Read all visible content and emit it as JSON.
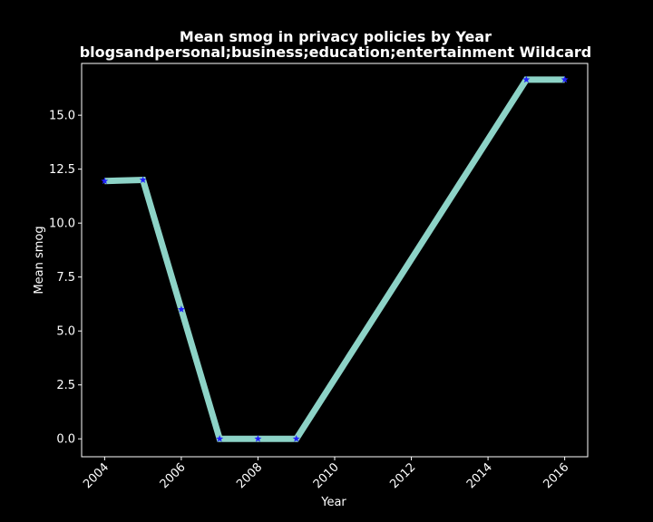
{
  "chart_data": {
    "type": "line",
    "title": "Mean smog in privacy policies by Year",
    "subtitle": "blogsandpersonal;business;education;entertainment Wildcard",
    "xlabel": "Year",
    "ylabel": "Mean smog",
    "x": [
      2004,
      2005,
      2006,
      2007,
      2008,
      2009,
      2015,
      2016
    ],
    "series": [
      {
        "values": [
          11.95,
          12.0,
          6.0,
          0.0,
          0.0,
          0.0,
          16.65,
          16.65
        ]
      }
    ],
    "xlim": [
      2003.4,
      2016.6
    ],
    "ylim": [
      -0.83,
      17.4
    ],
    "xticks": [
      "2004",
      "2006",
      "2008",
      "2010",
      "2012",
      "2014",
      "2016"
    ],
    "yticks": [
      "0.0",
      "2.5",
      "5.0",
      "7.5",
      "10.0",
      "12.5",
      "15.0"
    ],
    "grid": false,
    "legend": "none",
    "colors": {
      "background": "#000000",
      "line": "#8dd3c7",
      "marker": "#1f1fff",
      "text": "#ffffff"
    },
    "marker": "star-icon"
  }
}
